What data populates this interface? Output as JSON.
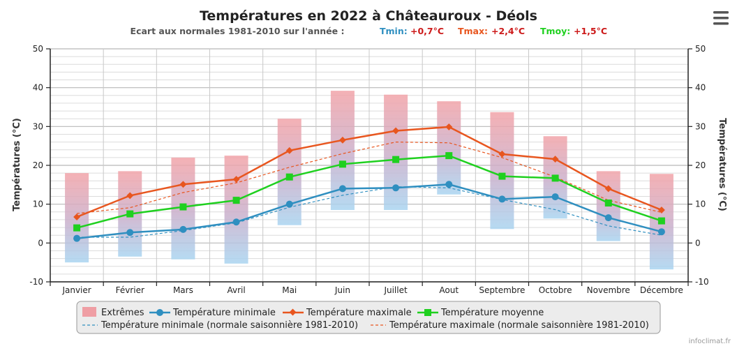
{
  "chart_data": {
    "type": "line",
    "title": "Températures en 2022 à Châteauroux - Déols",
    "subtitle": {
      "label": "Ecart aux normales 1981-2010 sur l'année :",
      "tmin_label": "Tmin:",
      "tmin_value": "+0,7°C",
      "tmax_label": "Tmax:",
      "tmax_value": "+2,4°C",
      "tmoy_label": "Tmoy:",
      "tmoy_value": "+1,5°C"
    },
    "categories": [
      "Janvier",
      "Février",
      "Mars",
      "Avril",
      "Mai",
      "Juin",
      "Juillet",
      "Aout",
      "Septembre",
      "Octobre",
      "Novembre",
      "Décembre"
    ],
    "ylabel_left": "Températures (°C)",
    "ylabel_right": "Températures (°C)",
    "ylim": [
      -10,
      50
    ],
    "yticks": [
      -10,
      0,
      10,
      20,
      30,
      40,
      50
    ],
    "extremes": [
      {
        "low": -5,
        "high": 18
      },
      {
        "low": -3.5,
        "high": 18.5
      },
      {
        "low": -4.2,
        "high": 22
      },
      {
        "low": -5.3,
        "high": 22.5
      },
      {
        "low": 4.6,
        "high": 32
      },
      {
        "low": 8.5,
        "high": 39.2
      },
      {
        "low": 8.5,
        "high": 38.2
      },
      {
        "low": 12.5,
        "high": 36.5
      },
      {
        "low": 3.6,
        "high": 33.7
      },
      {
        "low": 6.3,
        "high": 27.5
      },
      {
        "low": 0.5,
        "high": 18.5
      },
      {
        "low": -6.8,
        "high": 17.8
      }
    ],
    "series": [
      {
        "name": "Température minimale",
        "color": "#2f8fc0",
        "values": [
          1.2,
          2.7,
          3.5,
          5.4,
          10,
          14,
          14.2,
          15.1,
          11.3,
          11.9,
          6.5,
          2.9
        ]
      },
      {
        "name": "Température maximale",
        "color": "#e8561f",
        "values": [
          6.7,
          12.2,
          15.1,
          16.4,
          23.8,
          26.5,
          28.9,
          29.9,
          22.9,
          21.6,
          14,
          8.5
        ]
      },
      {
        "name": "Température moyenne",
        "color": "#1fd01f",
        "values": [
          3.9,
          7.5,
          9.3,
          11,
          17,
          20.3,
          21.5,
          22.5,
          17.2,
          16.7,
          10.3,
          5.7
        ]
      }
    ],
    "normals": [
      {
        "name": "Température minimale (normale saisonnière 1981-2010)",
        "color": "#2f8fc0",
        "values": [
          1.5,
          1.5,
          3.2,
          5.2,
          9.2,
          12.3,
          14.5,
          14.2,
          11.2,
          8.6,
          4.4,
          2
        ]
      },
      {
        "name": "Température maximale (normale saisonnière 1981-2010)",
        "color": "#e8561f",
        "values": [
          7.6,
          9.1,
          13,
          15.5,
          19.5,
          23,
          26,
          25.8,
          22,
          17,
          11,
          7.9
        ]
      }
    ],
    "legend": {
      "extremes_label": "Extrêmes",
      "extremes_color": "#f4a5a5"
    },
    "credit": "infoclimat.fr"
  },
  "ui": {
    "menu_icon": "hamburger-menu-icon"
  }
}
